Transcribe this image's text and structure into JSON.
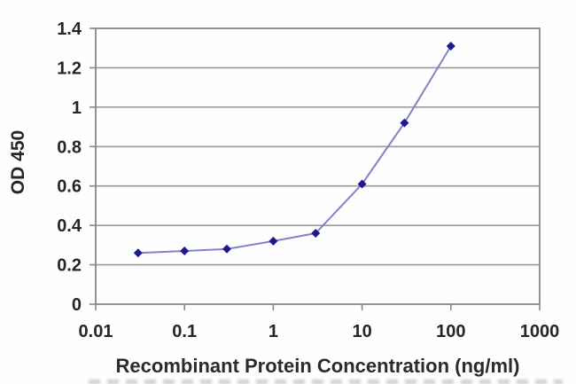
{
  "chart_data": {
    "type": "line",
    "title": "",
    "xlabel": "Recombinant Protein Concentration (ng/ml)",
    "ylabel": "OD 450",
    "x_scale": "log",
    "xlim": [
      0.01,
      1000
    ],
    "ylim": [
      0,
      1.4
    ],
    "x_ticks": [
      0.01,
      0.1,
      1,
      10,
      100,
      1000
    ],
    "x_tick_labels": [
      "0.01",
      "0.1",
      "1",
      "10",
      "100",
      "1000"
    ],
    "y_ticks": [
      0,
      0.2,
      0.4,
      0.6,
      0.8,
      1,
      1.2,
      1.4
    ],
    "y_tick_labels": [
      "0",
      "0.2",
      "0.4",
      "0.6",
      "0.8",
      "1",
      "1.2",
      "1.4"
    ],
    "grid": true,
    "legend": false,
    "marker": "diamond",
    "series": [
      {
        "x": [
          0.03,
          0.1,
          0.3,
          1,
          3,
          10,
          30,
          100
        ],
        "y": [
          0.26,
          0.27,
          0.28,
          0.32,
          0.36,
          0.61,
          0.92,
          1.31
        ]
      }
    ],
    "colors": {
      "line": "#8282c4",
      "marker": "#1b1b8e",
      "grid": "#9a9a9a",
      "axis": "#878787",
      "text": "#262626"
    }
  }
}
